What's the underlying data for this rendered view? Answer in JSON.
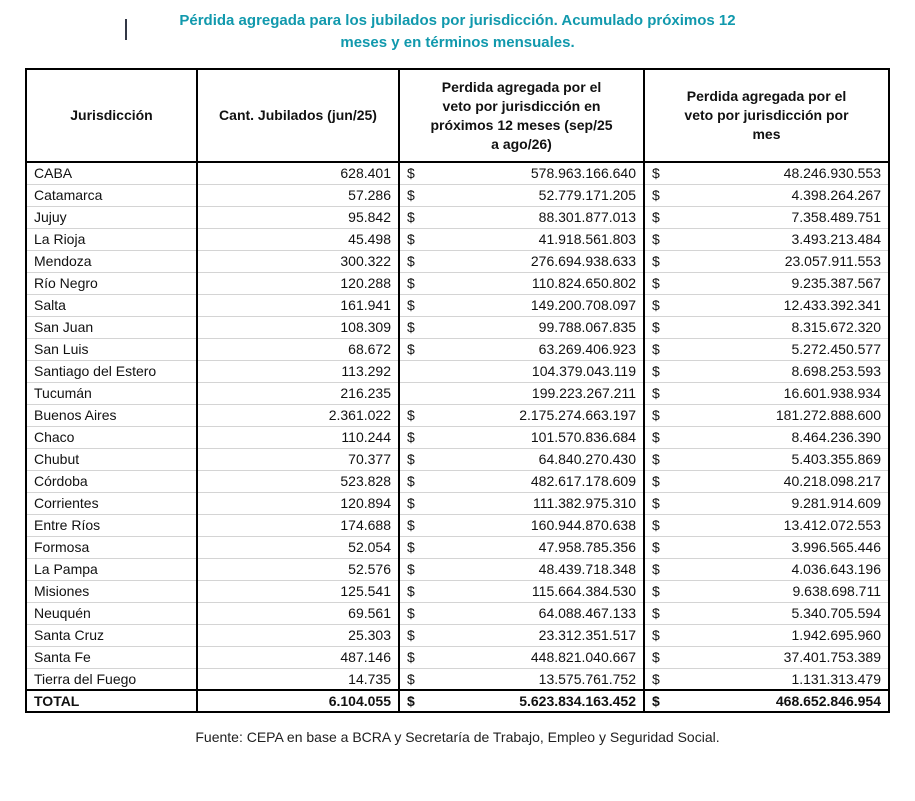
{
  "colors": {
    "accent": "#1199ad",
    "border": "#000000",
    "row_sep": "#d4d4d4"
  },
  "page": {
    "title": "Pérdida agregada para los jubilados por jurisdicción. Acumulado próximos 12\nmeses y en términos mensuales.",
    "source": "Fuente: CEPA en base a BCRA y Secretaría de Trabajo, Empleo y Seguridad Social."
  },
  "chart_data": {
    "type": "table",
    "title": "Pérdida agregada para los jubilados por jurisdicción. Acumulado próximos 12 meses y en términos mensuales.",
    "columns": [
      "Jurisdicción",
      "Cant. Jubilados (jun/25)",
      "Perdida agregada por el\nveto por jurisdicción en\npróximos 12 meses (sep/25\na ago/26)",
      "Perdida agregada por el\nveto por jurisdicción por\nmes"
    ],
    "currency_symbol": "$",
    "rows": [
      {
        "jurisdiccion": "CABA",
        "jubilados": "628.401",
        "sym_12m": "$",
        "veto_12m": "578.963.166.640",
        "sym_mes": "$",
        "veto_mes": "48.246.930.553"
      },
      {
        "jurisdiccion": "Catamarca",
        "jubilados": "57.286",
        "sym_12m": "$",
        "veto_12m": "52.779.171.205",
        "sym_mes": "$",
        "veto_mes": "4.398.264.267"
      },
      {
        "jurisdiccion": "Jujuy",
        "jubilados": "95.842",
        "sym_12m": "$",
        "veto_12m": "88.301.877.013",
        "sym_mes": "$",
        "veto_mes": "7.358.489.751"
      },
      {
        "jurisdiccion": "La Rioja",
        "jubilados": "45.498",
        "sym_12m": "$",
        "veto_12m": "41.918.561.803",
        "sym_mes": "$",
        "veto_mes": "3.493.213.484"
      },
      {
        "jurisdiccion": "Mendoza",
        "jubilados": "300.322",
        "sym_12m": "$",
        "veto_12m": "276.694.938.633",
        "sym_mes": "$",
        "veto_mes": "23.057.911.553"
      },
      {
        "jurisdiccion": "Río Negro",
        "jubilados": "120.288",
        "sym_12m": "$",
        "veto_12m": "110.824.650.802",
        "sym_mes": "$",
        "veto_mes": "9.235.387.567"
      },
      {
        "jurisdiccion": "Salta",
        "jubilados": "161.941",
        "sym_12m": "$",
        "veto_12m": "149.200.708.097",
        "sym_mes": "$",
        "veto_mes": "12.433.392.341"
      },
      {
        "jurisdiccion": "San Juan",
        "jubilados": "108.309",
        "sym_12m": "$",
        "veto_12m": "99.788.067.835",
        "sym_mes": "$",
        "veto_mes": "8.315.672.320"
      },
      {
        "jurisdiccion": "San Luis",
        "jubilados": "68.672",
        "sym_12m": "$",
        "veto_12m": "63.269.406.923",
        "sym_mes": "$",
        "veto_mes": "5.272.450.577"
      },
      {
        "jurisdiccion": "Santiago del Estero",
        "jubilados": "113.292",
        "sym_12m": "",
        "veto_12m": "104.379.043.119",
        "sym_mes": "$",
        "veto_mes": "8.698.253.593"
      },
      {
        "jurisdiccion": "Tucumán",
        "jubilados": "216.235",
        "sym_12m": "",
        "veto_12m": "199.223.267.211",
        "sym_mes": "$",
        "veto_mes": "16.601.938.934"
      },
      {
        "jurisdiccion": "Buenos Aires",
        "jubilados": "2.361.022",
        "sym_12m": "$",
        "veto_12m": "2.175.274.663.197",
        "sym_mes": "$",
        "veto_mes": "181.272.888.600"
      },
      {
        "jurisdiccion": "Chaco",
        "jubilados": "110.244",
        "sym_12m": "$",
        "veto_12m": "101.570.836.684",
        "sym_mes": "$",
        "veto_mes": "8.464.236.390"
      },
      {
        "jurisdiccion": "Chubut",
        "jubilados": "70.377",
        "sym_12m": "$",
        "veto_12m": "64.840.270.430",
        "sym_mes": "$",
        "veto_mes": "5.403.355.869"
      },
      {
        "jurisdiccion": "Córdoba",
        "jubilados": "523.828",
        "sym_12m": "$",
        "veto_12m": "482.617.178.609",
        "sym_mes": "$",
        "veto_mes": "40.218.098.217"
      },
      {
        "jurisdiccion": "Corrientes",
        "jubilados": "120.894",
        "sym_12m": "$",
        "veto_12m": "111.382.975.310",
        "sym_mes": "$",
        "veto_mes": "9.281.914.609"
      },
      {
        "jurisdiccion": "Entre Ríos",
        "jubilados": "174.688",
        "sym_12m": "$",
        "veto_12m": "160.944.870.638",
        "sym_mes": "$",
        "veto_mes": "13.412.072.553"
      },
      {
        "jurisdiccion": "Formosa",
        "jubilados": "52.054",
        "sym_12m": "$",
        "veto_12m": "47.958.785.356",
        "sym_mes": "$",
        "veto_mes": "3.996.565.446"
      },
      {
        "jurisdiccion": "La Pampa",
        "jubilados": "52.576",
        "sym_12m": "$",
        "veto_12m": "48.439.718.348",
        "sym_mes": "$",
        "veto_mes": "4.036.643.196"
      },
      {
        "jurisdiccion": "Misiones",
        "jubilados": "125.541",
        "sym_12m": "$",
        "veto_12m": "115.664.384.530",
        "sym_mes": "$",
        "veto_mes": "9.638.698.711"
      },
      {
        "jurisdiccion": "Neuquén",
        "jubilados": "69.561",
        "sym_12m": "$",
        "veto_12m": "64.088.467.133",
        "sym_mes": "$",
        "veto_mes": "5.340.705.594"
      },
      {
        "jurisdiccion": "Santa Cruz",
        "jubilados": "25.303",
        "sym_12m": "$",
        "veto_12m": "23.312.351.517",
        "sym_mes": "$",
        "veto_mes": "1.942.695.960"
      },
      {
        "jurisdiccion": "Santa Fe",
        "jubilados": "487.146",
        "sym_12m": "$",
        "veto_12m": "448.821.040.667",
        "sym_mes": "$",
        "veto_mes": "37.401.753.389"
      },
      {
        "jurisdiccion": "Tierra del Fuego",
        "jubilados": "14.735",
        "sym_12m": "$",
        "veto_12m": "13.575.761.752",
        "sym_mes": "$",
        "veto_mes": "1.131.313.479"
      }
    ],
    "total": {
      "jurisdiccion": "TOTAL",
      "jubilados": "6.104.055",
      "sym_12m": "$",
      "veto_12m": "5.623.834.163.452",
      "sym_mes": "$",
      "veto_mes": "468.652.846.954"
    }
  }
}
